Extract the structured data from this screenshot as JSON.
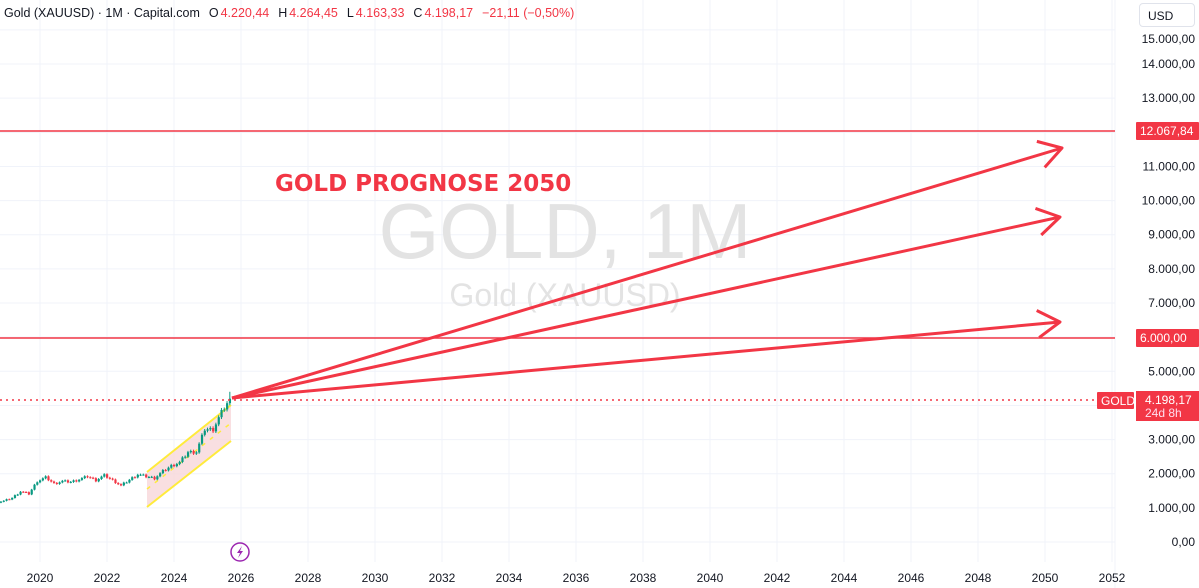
{
  "header": {
    "symbol": "Gold (XAUUSD) · 1M · Capital.com",
    "open_label": "O",
    "open": "4.220,44",
    "high_label": "H",
    "high": "4.264,45",
    "low_label": "L",
    "low": "4.163,33",
    "close_label": "C",
    "close": "4.198,17",
    "change": "−21,11 (−0,50%)"
  },
  "currency_button": "USD",
  "watermark": {
    "title": "GOLD, 1M",
    "subtitle": "Gold (XAUUSD)"
  },
  "annotation": "GOLD PROGNOSE 2050",
  "price_labels": {
    "line_high": "12.067,84",
    "line_low": "6.000,00",
    "symbol_tag": "GOLD",
    "last_price": "4.198,17",
    "countdown": "24d 8h"
  },
  "colors": {
    "up": "#089981",
    "down": "#f23645",
    "drawing": "#f23645",
    "channel": "#ffeb3b",
    "channel_fill": "#f8d7da",
    "lightning": "#9c27b0"
  },
  "chart_data": {
    "type": "candlestick",
    "x_ticks": [
      "2020",
      "2022",
      "2024",
      "2026",
      "2028",
      "2030",
      "2032",
      "2034",
      "2036",
      "2038",
      "2040",
      "2042",
      "2044",
      "2046",
      "2048",
      "2050",
      "2052"
    ],
    "y_ticks": [
      "0,00",
      "1.000,00",
      "2.000,00",
      "3.000,00",
      "5.000,00",
      "7.000,00",
      "8.000,00",
      "9.000,00",
      "10.000,00",
      "11.000,00",
      "13.000,00",
      "14.000,00",
      "15.000,00"
    ],
    "quarterly_closes": [
      1200,
      1290,
      1480,
      1410,
      1780,
      1890,
      1710,
      1780,
      1760,
      1830,
      1920,
      1810,
      1950,
      1810,
      1650,
      1820,
      1980,
      1920,
      1870,
      2070,
      2230,
      2330,
      2630,
      2640,
      3300,
      3300,
      3800,
      4198
    ],
    "horizontal_lines": [
      12067.84,
      6000
    ],
    "projection_targets_2050": [
      12000,
      8900,
      6400
    ],
    "last_price": 4198.17
  }
}
